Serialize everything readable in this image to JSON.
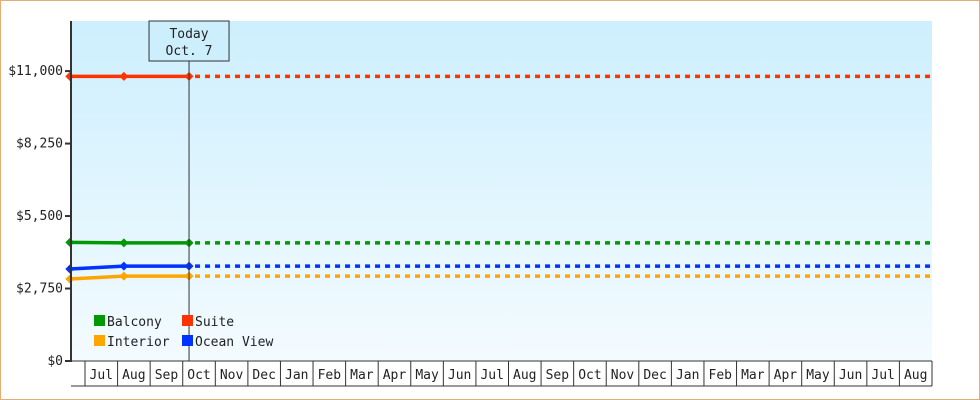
{
  "chart_data": {
    "type": "line",
    "title": "",
    "xlabel": "",
    "ylabel": "",
    "ylim": [
      0,
      12900
    ],
    "y_ticks": [
      "$0",
      "$2,750",
      "$5,500",
      "$8,250",
      "$11,000"
    ],
    "y_tick_values": [
      0,
      2750,
      5500,
      8250,
      11000
    ],
    "x_range": [
      "Jun 17",
      "Aug (end)"
    ],
    "x_ticks": [
      "",
      "Jul",
      "Aug",
      "Sep",
      "Oct",
      "Nov",
      "Dec",
      "Jan",
      "Feb",
      "Mar",
      "Apr",
      "May",
      "Jun",
      "Jul",
      "Aug",
      "Sep",
      "Oct",
      "Nov",
      "Dec",
      "Jan",
      "Feb",
      "Mar",
      "Apr",
      "May",
      "Jun",
      "Jul",
      "Aug"
    ],
    "grid": false,
    "legend_position": "bottom-left",
    "today_marker": {
      "line1": "Today",
      "line2": "Oct. 7"
    },
    "series": [
      {
        "name": "Balcony",
        "color": "#009900",
        "points": [
          {
            "x": "Jun 17",
            "y": 4500
          },
          {
            "x": "Aug 7",
            "y": 4480
          },
          {
            "x": "Oct 7",
            "y": 4480
          }
        ],
        "projection": "dotted to end at last value"
      },
      {
        "name": "Suite",
        "color": "#ff3300",
        "points": [
          {
            "x": "Jun 17",
            "y": 10800
          },
          {
            "x": "Aug 7",
            "y": 10800
          },
          {
            "x": "Oct 7",
            "y": 10800
          }
        ],
        "projection": "dotted to end at last value"
      },
      {
        "name": "Interior",
        "color": "#ffa500",
        "points": [
          {
            "x": "Jun 17",
            "y": 3110
          },
          {
            "x": "Aug 7",
            "y": 3220
          },
          {
            "x": "Oct 7",
            "y": 3220
          }
        ],
        "projection": "dotted to end at last value"
      },
      {
        "name": "Ocean View",
        "color": "#0033ff",
        "points": [
          {
            "x": "Jun 17",
            "y": 3490
          },
          {
            "x": "Aug 7",
            "y": 3600
          },
          {
            "x": "Oct 7",
            "y": 3600
          }
        ],
        "projection": "dotted to end at last value"
      }
    ]
  }
}
